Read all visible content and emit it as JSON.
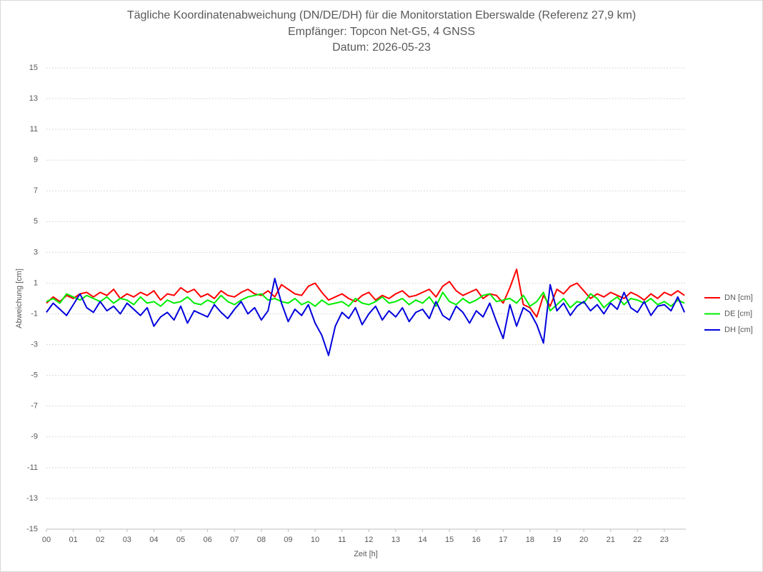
{
  "chart_data": {
    "type": "line",
    "title": "Tägliche Koordinatenabweichung (DN/DE/DH) für die Monitorstation Eberswalde (Referenz 27,9 km)",
    "subtitle": [
      "Empfänger: Topcon Net-G5, 4 GNSS",
      "Datum: 2026-05-23"
    ],
    "x_label": "Zeit [h]",
    "y_label": "Abweichung [cm]",
    "x": [
      0,
      0.25,
      0.5,
      0.75,
      1,
      1.25,
      1.5,
      1.75,
      2,
      2.25,
      2.5,
      2.75,
      3,
      3.25,
      3.5,
      3.75,
      4,
      4.25,
      4.5,
      4.75,
      5,
      5.25,
      5.5,
      5.75,
      6,
      6.25,
      6.5,
      6.75,
      7,
      7.25,
      7.5,
      7.75,
      8,
      8.25,
      8.5,
      8.75,
      9,
      9.25,
      9.5,
      9.75,
      10,
      10.25,
      10.5,
      10.75,
      11,
      11.25,
      11.5,
      11.75,
      12,
      12.25,
      12.5,
      12.75,
      13,
      13.25,
      13.5,
      13.75,
      14,
      14.25,
      14.5,
      14.75,
      15,
      15.25,
      15.5,
      15.75,
      16,
      16.25,
      16.5,
      16.75,
      17,
      17.25,
      17.5,
      17.75,
      18,
      18.25,
      18.5,
      18.75,
      19,
      19.25,
      19.5,
      19.75,
      20,
      20.25,
      20.5,
      20.75,
      21,
      21.25,
      21.5,
      21.75,
      22,
      22.25,
      22.5,
      22.75,
      23,
      23.25,
      23.5,
      23.75
    ],
    "series": [
      {
        "name": "DN [cm]",
        "color": "#ff0000",
        "values": [
          -0.3,
          0.1,
          -0.2,
          0.2,
          0.0,
          0.3,
          0.4,
          0.1,
          0.4,
          0.2,
          0.6,
          0.0,
          0.3,
          0.1,
          0.4,
          0.2,
          0.5,
          -0.1,
          0.3,
          0.2,
          0.7,
          0.4,
          0.6,
          0.1,
          0.3,
          0.0,
          0.5,
          0.2,
          0.1,
          0.4,
          0.6,
          0.3,
          0.2,
          0.5,
          0.1,
          0.9,
          0.6,
          0.3,
          0.2,
          0.8,
          1.0,
          0.4,
          -0.1,
          0.1,
          0.3,
          0.0,
          -0.2,
          0.2,
          0.4,
          -0.1,
          0.2,
          0.0,
          0.3,
          0.5,
          0.1,
          0.2,
          0.4,
          0.6,
          0.1,
          0.8,
          1.1,
          0.5,
          0.2,
          0.4,
          0.6,
          0.0,
          0.3,
          0.2,
          -0.3,
          0.7,
          1.9,
          -0.4,
          -0.6,
          -1.2,
          0.2,
          -0.5,
          0.6,
          0.3,
          0.8,
          1.0,
          0.5,
          0.0,
          0.3,
          0.1,
          0.4,
          0.2,
          0.0,
          0.4,
          0.2,
          -0.1,
          0.3,
          0.0,
          0.4,
          0.2,
          0.5,
          0.2
        ]
      },
      {
        "name": "DE [cm]",
        "color": "#00ee00",
        "values": [
          -0.2,
          0.0,
          -0.3,
          0.3,
          0.1,
          -0.1,
          0.2,
          0.0,
          -0.2,
          0.1,
          -0.3,
          0.0,
          -0.1,
          -0.4,
          0.1,
          -0.3,
          -0.2,
          -0.5,
          -0.1,
          -0.3,
          -0.2,
          0.1,
          -0.3,
          -0.4,
          -0.1,
          -0.3,
          0.2,
          -0.2,
          -0.4,
          -0.1,
          0.1,
          0.2,
          0.3,
          -0.1,
          0.0,
          -0.2,
          -0.3,
          0.0,
          -0.4,
          -0.2,
          -0.5,
          -0.1,
          -0.4,
          -0.3,
          -0.2,
          -0.5,
          0.0,
          -0.3,
          -0.4,
          -0.2,
          0.1,
          -0.3,
          -0.2,
          0.0,
          -0.4,
          -0.1,
          -0.3,
          0.1,
          -0.5,
          0.4,
          -0.2,
          -0.4,
          0.0,
          -0.3,
          -0.1,
          0.2,
          0.3,
          -0.2,
          -0.1,
          0.0,
          -0.3,
          0.2,
          -0.5,
          -0.2,
          0.4,
          -0.8,
          -0.4,
          0.0,
          -0.6,
          -0.2,
          -0.3,
          0.3,
          0.0,
          -0.6,
          -0.2,
          0.1,
          -0.4,
          0.0,
          -0.1,
          -0.3,
          0.0,
          -0.4,
          -0.2,
          -0.5,
          -0.1,
          -0.3
        ]
      },
      {
        "name": "DH [cm]",
        "color": "#0000dd",
        "values": [
          -0.9,
          -0.3,
          -0.7,
          -1.1,
          -0.4,
          0.3,
          -0.6,
          -0.9,
          -0.2,
          -0.8,
          -0.5,
          -1.0,
          -0.3,
          -0.7,
          -1.1,
          -0.6,
          -1.8,
          -1.2,
          -0.9,
          -1.4,
          -0.5,
          -1.6,
          -0.8,
          -1.0,
          -1.2,
          -0.4,
          -0.9,
          -1.3,
          -0.7,
          -0.2,
          -1.0,
          -0.6,
          -1.4,
          -0.8,
          1.3,
          -0.3,
          -1.5,
          -0.7,
          -1.1,
          -0.4,
          -1.6,
          -2.4,
          -3.7,
          -1.8,
          -0.9,
          -1.3,
          -0.6,
          -1.7,
          -1.0,
          -0.5,
          -1.4,
          -0.8,
          -1.2,
          -0.6,
          -1.5,
          -0.9,
          -0.7,
          -1.3,
          -0.2,
          -1.1,
          -1.4,
          -0.5,
          -0.9,
          -1.6,
          -0.8,
          -1.2,
          -0.3,
          -1.5,
          -2.6,
          -0.4,
          -1.8,
          -0.6,
          -0.9,
          -1.7,
          -2.9,
          0.9,
          -0.8,
          -0.3,
          -1.1,
          -0.5,
          -0.2,
          -0.8,
          -0.4,
          -1.0,
          -0.3,
          -0.7,
          0.4,
          -0.6,
          -0.9,
          -0.2,
          -1.1,
          -0.5,
          -0.4,
          -0.8,
          0.1,
          -0.9
        ]
      }
    ],
    "xlim": [
      0,
      23.8
    ],
    "xticks": [
      {
        "value": 0,
        "label": "00"
      },
      {
        "value": 1,
        "label": "01"
      },
      {
        "value": 2,
        "label": "02"
      },
      {
        "value": 3,
        "label": "03"
      },
      {
        "value": 4,
        "label": "04"
      },
      {
        "value": 5,
        "label": "05"
      },
      {
        "value": 6,
        "label": "06"
      },
      {
        "value": 7,
        "label": "07"
      },
      {
        "value": 8,
        "label": "08"
      },
      {
        "value": 9,
        "label": "09"
      },
      10,
      11,
      12,
      13,
      14,
      15,
      16,
      17,
      18,
      19,
      20,
      21,
      22,
      23
    ],
    "ylim": [
      -15,
      15
    ],
    "yticks": [
      -15,
      -13,
      -11,
      -9,
      -7,
      -5,
      -3,
      -1,
      1,
      3,
      5,
      7,
      9,
      11,
      13,
      15
    ],
    "grid": true,
    "legend": "right"
  }
}
